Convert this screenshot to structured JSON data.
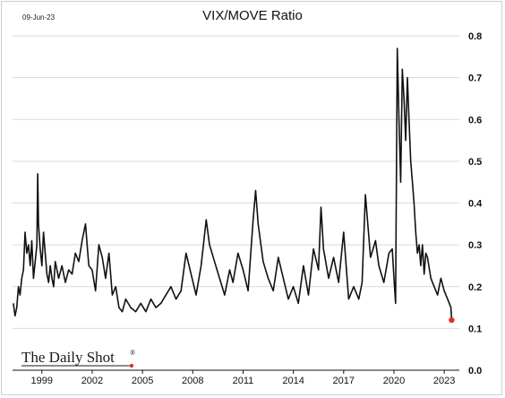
{
  "header": {
    "date_stamp": "09-Jun-23"
  },
  "watermark": {
    "text": "The Daily Shot",
    "registered": "®"
  },
  "colors": {
    "line": "#111111",
    "grid": "#d9d9d9",
    "last_point": "#e03030"
  },
  "chart_data": {
    "type": "line",
    "title": "VIX/MOVE Ratio",
    "xlabel": "",
    "ylabel": "",
    "xlim": [
      1997.25,
      2023.9
    ],
    "ylim": [
      0.0,
      0.8
    ],
    "y_axis_side": "right",
    "y_ticks": [
      "0.0",
      "0.1",
      "0.2",
      "0.3",
      "0.4",
      "0.5",
      "0.6",
      "0.7",
      "0.8"
    ],
    "x_ticks": [
      "1999",
      "2002",
      "2005",
      "2008",
      "2011",
      "2014",
      "2017",
      "2020",
      "2023"
    ],
    "grid": "horizontal",
    "series": [
      {
        "values_note": "x in years, y ratio",
        "x": [
          1997.3,
          1997.4,
          1997.5,
          1997.6,
          1997.7,
          1997.8,
          1997.9,
          1998.0,
          1998.1,
          1998.2,
          1998.3,
          1998.4,
          1998.5,
          1998.6,
          1998.7,
          1998.75,
          1998.8,
          1998.9,
          1999.0,
          1999.1,
          1999.2,
          1999.3,
          1999.4,
          1999.5,
          1999.6,
          1999.7,
          1999.8,
          1999.9,
          2000.0,
          2000.2,
          2000.4,
          2000.6,
          2000.8,
          2001.0,
          2001.2,
          2001.4,
          2001.6,
          2001.7,
          2001.8,
          2002.0,
          2002.2,
          2002.4,
          2002.6,
          2002.8,
          2003.0,
          2003.2,
          2003.4,
          2003.6,
          2003.8,
          2004.0,
          2004.3,
          2004.6,
          2004.9,
          2005.2,
          2005.5,
          2005.8,
          2006.1,
          2006.4,
          2006.7,
          2007.0,
          2007.3,
          2007.6,
          2007.9,
          2008.2,
          2008.5,
          2008.8,
          2009.0,
          2009.3,
          2009.6,
          2009.9,
          2010.2,
          2010.4,
          2010.7,
          2011.0,
          2011.3,
          2011.6,
          2011.75,
          2011.9,
          2012.2,
          2012.5,
          2012.8,
          2013.1,
          2013.4,
          2013.7,
          2014.0,
          2014.3,
          2014.6,
          2014.9,
          2015.2,
          2015.5,
          2015.65,
          2015.8,
          2016.1,
          2016.4,
          2016.7,
          2017.0,
          2017.3,
          2017.6,
          2017.9,
          2018.1,
          2018.3,
          2018.6,
          2018.9,
          2019.1,
          2019.4,
          2019.7,
          2019.9,
          2020.0,
          2020.1,
          2020.2,
          2020.3,
          2020.4,
          2020.5,
          2020.6,
          2020.7,
          2020.8,
          2020.9,
          2021.0,
          2021.1,
          2021.2,
          2021.3,
          2021.4,
          2021.5,
          2021.6,
          2021.7,
          2021.8,
          2021.9,
          2022.0,
          2022.2,
          2022.4,
          2022.6,
          2022.8,
          2023.0,
          2023.2,
          2023.4,
          2023.44
        ],
        "y": [
          0.16,
          0.13,
          0.15,
          0.2,
          0.18,
          0.22,
          0.24,
          0.33,
          0.28,
          0.3,
          0.25,
          0.31,
          0.22,
          0.26,
          0.3,
          0.47,
          0.35,
          0.29,
          0.25,
          0.33,
          0.28,
          0.23,
          0.21,
          0.25,
          0.22,
          0.2,
          0.26,
          0.24,
          0.22,
          0.25,
          0.21,
          0.24,
          0.23,
          0.28,
          0.26,
          0.31,
          0.35,
          0.3,
          0.25,
          0.24,
          0.19,
          0.3,
          0.27,
          0.22,
          0.28,
          0.18,
          0.2,
          0.15,
          0.14,
          0.17,
          0.15,
          0.14,
          0.16,
          0.14,
          0.17,
          0.15,
          0.16,
          0.18,
          0.2,
          0.17,
          0.19,
          0.28,
          0.23,
          0.18,
          0.25,
          0.36,
          0.3,
          0.26,
          0.22,
          0.18,
          0.24,
          0.21,
          0.28,
          0.24,
          0.19,
          0.36,
          0.43,
          0.35,
          0.26,
          0.22,
          0.19,
          0.27,
          0.22,
          0.17,
          0.2,
          0.16,
          0.25,
          0.18,
          0.29,
          0.24,
          0.39,
          0.29,
          0.22,
          0.27,
          0.21,
          0.33,
          0.17,
          0.2,
          0.17,
          0.21,
          0.42,
          0.27,
          0.31,
          0.25,
          0.21,
          0.28,
          0.29,
          0.22,
          0.16,
          0.77,
          0.6,
          0.45,
          0.72,
          0.65,
          0.55,
          0.7,
          0.6,
          0.5,
          0.45,
          0.4,
          0.33,
          0.28,
          0.3,
          0.25,
          0.3,
          0.23,
          0.28,
          0.27,
          0.22,
          0.2,
          0.18,
          0.22,
          0.19,
          0.17,
          0.15,
          0.12
        ]
      }
    ],
    "last_point": {
      "x": 2023.44,
      "y": 0.12
    }
  }
}
